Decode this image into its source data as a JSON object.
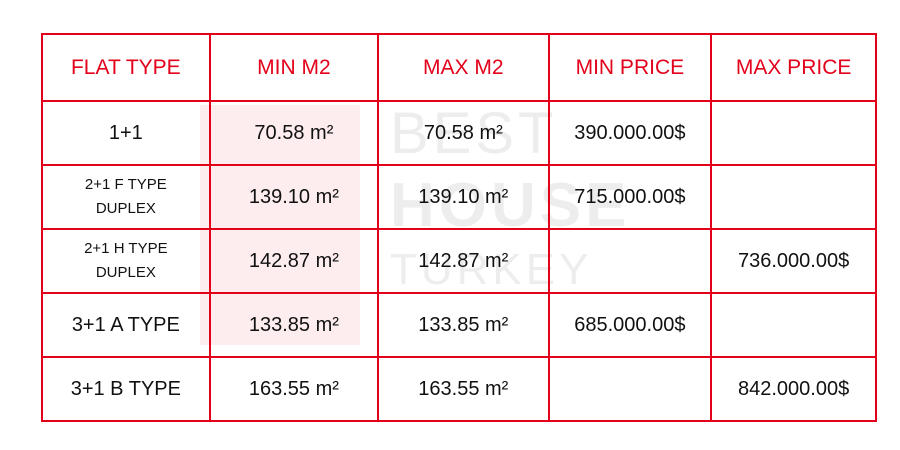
{
  "watermark": {
    "line1": "BEST",
    "line2": "HOUSE",
    "line3": "TURKEY"
  },
  "table": {
    "header": [
      "FLAT TYPE",
      "MIN M2",
      "MAX M2",
      "MIN PRICE",
      "MAX PRICE"
    ],
    "rows": [
      [
        "1+1",
        "70.58 m²",
        "70.58 m²",
        "390.000.00$",
        null
      ],
      [
        "2+1 F TYPE DUPLEX",
        "139.10 m²",
        "139.10 m²",
        "715.000.00$",
        null
      ],
      [
        "2+1 H TYPE DUPLEX",
        "142.87 m²",
        "142.87 m²",
        null,
        "736.000.00$"
      ],
      [
        "3+1 A TYPE",
        "133.85 m²",
        "133.85 m²",
        "685.000.00$",
        null
      ],
      [
        "3+1 B TYPE",
        "163.55 m²",
        "163.55 m²",
        null,
        "842.000.00$"
      ]
    ]
  }
}
